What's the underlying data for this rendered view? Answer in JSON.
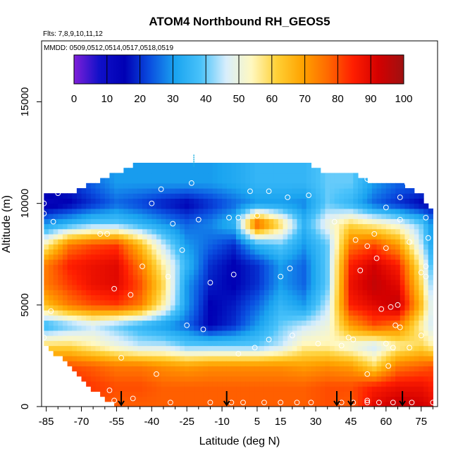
{
  "chart_data": {
    "type": "heatmap",
    "title": "ATOM4 Northbound RH_GEOS5",
    "subtitle_flights": "Flts: 7,8,9,10,11,12",
    "subtitle_dates": "MMDD: 0509,0512,0514,0517,0518,0519",
    "xlabel": "Latitude (deg N)",
    "ylabel": "Altitude (m)",
    "xlim": [
      -87,
      82
    ],
    "ylim": [
      0,
      18000
    ],
    "x_ticks": [
      -85,
      -70,
      -55,
      -40,
      -25,
      -10,
      5,
      15,
      30,
      45,
      60,
      75
    ],
    "y_ticks": [
      0,
      5000,
      10000,
      15000
    ],
    "colorbar": {
      "ticks": [
        0,
        10,
        20,
        30,
        40,
        50,
        60,
        70,
        80,
        90,
        100
      ],
      "range": [
        0,
        100
      ],
      "colors": [
        "#7f1fd9",
        "#1010c8",
        "#0000b4",
        "#0a4fe0",
        "#1aa4f0",
        "#49c2fa",
        "#d8eefc",
        "#fff8c0",
        "#ffd035",
        "#ffa300",
        "#ff6a00",
        "#ff1e00",
        "#d40000",
        "#9e1111"
      ]
    },
    "lat_grid": [
      -85,
      -75,
      -65,
      -55,
      -45,
      -35,
      -25,
      -15,
      -5,
      5,
      15,
      25,
      35,
      45,
      55,
      65,
      75,
      80
    ],
    "alt_grid": [
      0,
      1000,
      2000,
      3000,
      4000,
      5000,
      6000,
      7000,
      8000,
      9000,
      10000,
      11000,
      12000
    ],
    "top_altitude": [
      10500,
      10500,
      11000,
      11500,
      12000,
      12000,
      12000,
      12000,
      12000,
      12000,
      12000,
      12000,
      11500,
      11500,
      11000,
      11000,
      10500,
      9500
    ],
    "bottom_altitude": [
      3000,
      2000,
      800,
      0,
      0,
      0,
      0,
      0,
      0,
      0,
      0,
      0,
      0,
      0,
      0,
      0,
      0,
      0
    ],
    "rh": [
      [
        90,
        88,
        80,
        78,
        78,
        78,
        78,
        78,
        78,
        78,
        78,
        78,
        80,
        78,
        90,
        95,
        93,
        90
      ],
      [
        85,
        85,
        82,
        80,
        80,
        78,
        78,
        78,
        78,
        78,
        78,
        78,
        80,
        80,
        85,
        88,
        88,
        85
      ],
      [
        80,
        80,
        78,
        75,
        75,
        72,
        70,
        72,
        72,
        72,
        72,
        70,
        72,
        70,
        60,
        75,
        78,
        80
      ],
      [
        60,
        60,
        55,
        50,
        45,
        45,
        40,
        40,
        40,
        40,
        45,
        55,
        55,
        50,
        45,
        55,
        60,
        55
      ],
      [
        35,
        40,
        45,
        40,
        35,
        30,
        25,
        15,
        20,
        30,
        40,
        45,
        50,
        70,
        80,
        75,
        55,
        45
      ],
      [
        65,
        75,
        80,
        82,
        75,
        55,
        30,
        15,
        18,
        25,
        35,
        30,
        45,
        85,
        90,
        95,
        65,
        45
      ],
      [
        75,
        82,
        88,
        90,
        80,
        60,
        30,
        18,
        15,
        20,
        30,
        25,
        40,
        88,
        95,
        90,
        60,
        40
      ],
      [
        75,
        85,
        88,
        90,
        75,
        55,
        35,
        20,
        15,
        20,
        30,
        25,
        40,
        85,
        92,
        85,
        55,
        35
      ],
      [
        55,
        75,
        80,
        82,
        65,
        45,
        30,
        25,
        20,
        35,
        40,
        30,
        40,
        75,
        80,
        70,
        45,
        30
      ],
      [
        30,
        35,
        40,
        40,
        35,
        30,
        25,
        28,
        35,
        80,
        60,
        35,
        50,
        60,
        55,
        50,
        40,
        28
      ],
      [
        12,
        15,
        20,
        25,
        22,
        18,
        15,
        20,
        25,
        30,
        30,
        28,
        40,
        35,
        25,
        20,
        15,
        15
      ],
      [
        20,
        20,
        25,
        30,
        30,
        30,
        30,
        30,
        32,
        35,
        35,
        35,
        40,
        40,
        30,
        25,
        25,
        25
      ],
      [
        25,
        25,
        30,
        30,
        30,
        30,
        30,
        30,
        32,
        35,
        35,
        35,
        40,
        40,
        30,
        30,
        30,
        30
      ]
    ],
    "observation_points": [
      [
        -80,
        10500
      ],
      [
        -86,
        10000
      ],
      [
        -82,
        9100
      ],
      [
        -62,
        8500
      ],
      [
        -59,
        8500
      ],
      [
        -56,
        5800
      ],
      [
        -40,
        10000
      ],
      [
        -36,
        10700
      ],
      [
        -44,
        6900
      ],
      [
        -49,
        5500
      ],
      [
        -31,
        9000
      ],
      [
        -23,
        11000
      ],
      [
        -27,
        7700
      ],
      [
        -33,
        6400
      ],
      [
        -25,
        4000
      ],
      [
        -18,
        3800
      ],
      [
        -15,
        6100
      ],
      [
        -7,
        9300
      ],
      [
        -3,
        9300
      ],
      [
        -5,
        6500
      ],
      [
        -3,
        2600
      ],
      [
        5,
        9400
      ],
      [
        2,
        10600
      ],
      [
        10,
        10600
      ],
      [
        18,
        10300
      ],
      [
        19,
        6800
      ],
      [
        15,
        6400
      ],
      [
        10,
        3300
      ],
      [
        4,
        2900
      ],
      [
        20,
        3500
      ],
      [
        27,
        10400
      ],
      [
        31,
        3100
      ],
      [
        41,
        3000
      ],
      [
        44,
        3400
      ],
      [
        47,
        8200
      ],
      [
        52,
        7900
      ],
      [
        49,
        6700
      ],
      [
        55,
        8500
      ],
      [
        56,
        7300
      ],
      [
        60,
        7800
      ],
      [
        58,
        4800
      ],
      [
        62,
        4900
      ],
      [
        65,
        5000
      ],
      [
        60,
        3100
      ],
      [
        63,
        2900
      ],
      [
        70,
        2900
      ],
      [
        64,
        4000
      ],
      [
        66,
        3900
      ],
      [
        75,
        3500
      ],
      [
        77,
        6400
      ],
      [
        78,
        8300
      ],
      [
        66,
        9200
      ],
      [
        70,
        8100
      ],
      [
        77,
        9300
      ],
      [
        69,
        11000
      ],
      [
        66,
        10300
      ],
      [
        60,
        9800
      ],
      [
        52,
        11200
      ],
      [
        49,
        11600
      ],
      [
        46,
        3300
      ],
      [
        52,
        1600
      ],
      [
        61,
        2000
      ],
      [
        75,
        6600
      ],
      [
        -83,
        4700
      ],
      [
        -86,
        3400
      ],
      [
        -83,
        1300
      ],
      [
        -56,
        300
      ],
      [
        -58,
        800
      ],
      [
        -53,
        2400
      ],
      [
        -38,
        1600
      ],
      [
        -48,
        400
      ],
      [
        -32,
        200
      ],
      [
        -15,
        200
      ],
      [
        -6,
        200
      ],
      [
        -1,
        200
      ],
      [
        8,
        200
      ],
      [
        15,
        200
      ],
      [
        22,
        200
      ],
      [
        28,
        200
      ],
      [
        41,
        200
      ],
      [
        46,
        200
      ],
      [
        52,
        200
      ],
      [
        57,
        200
      ],
      [
        63,
        200
      ],
      [
        71,
        200
      ],
      [
        80,
        200
      ],
      [
        -86,
        9500
      ],
      [
        -20,
        9200
      ],
      [
        38,
        9100
      ],
      [
        77,
        6900
      ],
      [
        52,
        300
      ]
    ],
    "arrow_latitudes": [
      -53,
      -8,
      39,
      45,
      67
    ],
    "marker_latitude": -22
  }
}
